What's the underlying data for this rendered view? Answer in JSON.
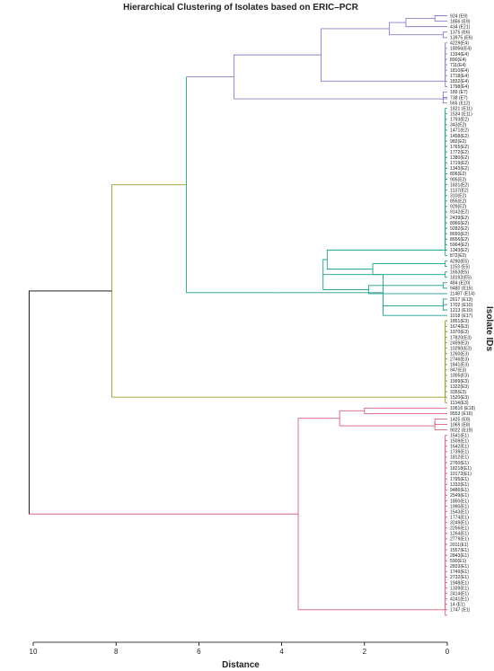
{
  "chart_data": {
    "type": "dendrogram",
    "orientation": "right",
    "title": "Hierarchical Clustering of Isolates based on ERIC–PCR",
    "xlabel": "Distance",
    "ylabel": "Isolate IDs",
    "xlim": [
      10,
      0
    ],
    "xticks": [
      10,
      8,
      6,
      4,
      2,
      0
    ],
    "colors": {
      "purple": "#8a7fc9",
      "teal": "#1f9e8e",
      "olive": "#9a9a2a",
      "pink": "#d9607e",
      "black": "#000000"
    },
    "leaves": [
      "924 (E9)",
      "1856 (E9)",
      "434 (E21)",
      "1375 (E6)",
      "13975 (E6)",
      "4229(E4)",
      "18056(E4)",
      "1334(E4)",
      "890(E4)",
      "711(E4)",
      "1810(E4)",
      "1718(E4)",
      "1832(E4)",
      "1798(E4)",
      "189 (E7)",
      "738 (E7)",
      "565 (E12)",
      "1821 (E11)",
      "1534 (E11)",
      "1793(E2)",
      "343(E2)",
      "1471(E2)",
      "1458(E2)",
      "982(E2)",
      "1765(E2)",
      "1772(E2)",
      "1380(E2)",
      "1719(E2)",
      "1343(E2)",
      "806(E2)",
      "905(E2)",
      "1831(E2)",
      "1137(E2)",
      "310(E2)",
      "855(E2)",
      "929(E2)",
      "9142(E2)",
      "2439(E2)",
      "8966(E2)",
      "9282(E2)",
      "8650(E2)",
      "8656(E2)",
      "5964(E2)",
      "1343(E2)",
      "872(E2)",
      "4290(E5)",
      "1153 (E5)",
      "1653(E5)",
      "18192(E5)",
      "484 (E20)",
      "9480 (E15)",
      "11487 (E14)",
      "2617 (E13)",
      "1702 (E10)",
      "1213 (E10)",
      "1018 (E17)",
      "1851(E3)",
      "1674(E3)",
      "1970(E3)",
      "17820(E3)",
      "2459(E3)",
      "10290(E3)",
      "1260(E3)",
      "2746(E3)",
      "1841(E3)",
      "947(E3)",
      "1005(E3)",
      "1999(E3)",
      "1322(E3)",
      "335(E3)",
      "1520(E3)",
      "1134(E3)",
      "10616 (E18)",
      "9553 (E16)",
      "1425 (E8)",
      "1069 (E8)",
      "9022 (E19)",
      "1541(E1)",
      "1509(E1)",
      "1642(E1)",
      "1739(E1)",
      "1812(E1)",
      "2760(E1)",
      "18218(E1)",
      "10172(E1)",
      "1795(E1)",
      "1332(E1)",
      "9486(E1)",
      "2549(E1)",
      "1850(E1)",
      "1990(E1)",
      "1543(E1)",
      "1774(E1)",
      "3249(E1)",
      "2256(E1)",
      "1264(E1)",
      "2779(E1)",
      "2011(E1)",
      "1557(E1)",
      "2843(E1)",
      "590(E1)",
      "2833(E1)",
      "1749(E1)",
      "2732(E1)",
      "1948(E1)",
      "1339(E1)",
      "2414(E1)",
      "4241(E1)",
      "14 (E1)",
      "1747 (E1)"
    ]
  }
}
